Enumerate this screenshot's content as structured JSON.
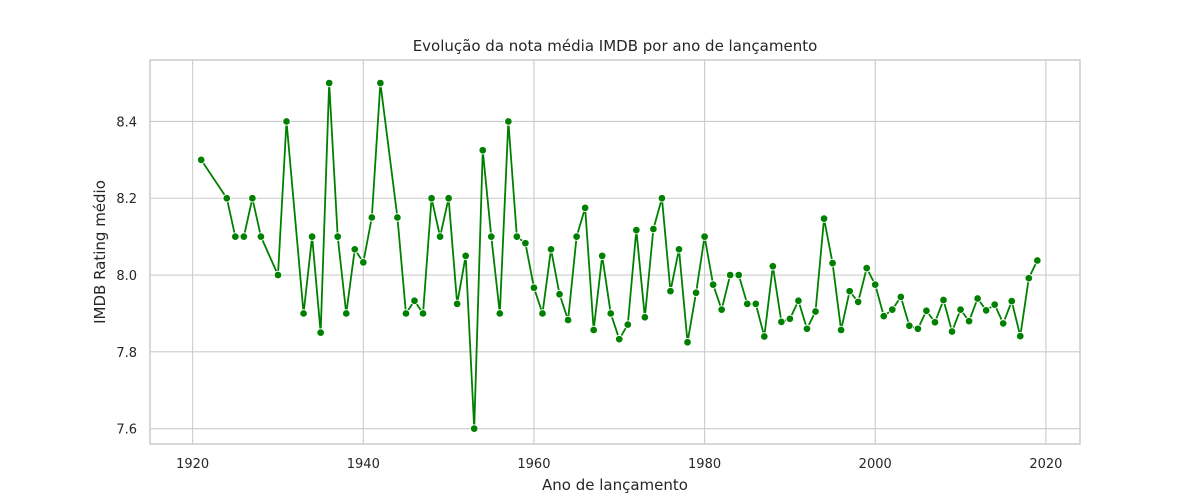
{
  "chart_data": {
    "type": "line",
    "title": "Evolução da nota média IMDB por ano de lançamento",
    "xlabel": "Ano de lançamento",
    "ylabel": "IMDB Rating médio",
    "xlim": [
      1915,
      2024
    ],
    "ylim": [
      7.56,
      8.56
    ],
    "x_ticks": [
      1920,
      1940,
      1960,
      1980,
      2000,
      2020
    ],
    "y_ticks": [
      7.6,
      7.8,
      8.0,
      8.2,
      8.4
    ],
    "y_tick_labels": [
      "7.6",
      "7.8",
      "8.0",
      "8.2",
      "8.4"
    ],
    "grid": true,
    "series": [
      {
        "color": "#008000",
        "marker": "circle",
        "x": [
          1921,
          1924,
          1925,
          1926,
          1927,
          1928,
          1930,
          1931,
          1933,
          1934,
          1935,
          1936,
          1937,
          1938,
          1939,
          1940,
          1941,
          1942,
          1944,
          1945,
          1946,
          1947,
          1948,
          1949,
          1950,
          1951,
          1952,
          1953,
          1954,
          1955,
          1956,
          1957,
          1958,
          1959,
          1960,
          1961,
          1962,
          1963,
          1964,
          1965,
          1966,
          1967,
          1968,
          1969,
          1970,
          1971,
          1972,
          1973,
          1974,
          1975,
          1976,
          1977,
          1978,
          1979,
          1980,
          1981,
          1982,
          1983,
          1984,
          1985,
          1986,
          1987,
          1988,
          1989,
          1990,
          1991,
          1992,
          1993,
          1994,
          1995,
          1996,
          1997,
          1998,
          1999,
          2000,
          2001,
          2002,
          2003,
          2004,
          2005,
          2006,
          2007,
          2008,
          2009,
          2010,
          2011,
          2012,
          2013,
          2014,
          2015,
          2016,
          2017,
          2018,
          2019
        ],
        "y": [
          8.3,
          8.2,
          8.1,
          8.1,
          8.2,
          8.1,
          8.0,
          8.4,
          7.9,
          8.1,
          7.85,
          8.5,
          8.1,
          7.9,
          8.067,
          8.033,
          8.15,
          8.5,
          8.15,
          7.9,
          7.933,
          7.9,
          8.2,
          8.1,
          8.2,
          7.925,
          8.05,
          7.6,
          8.325,
          8.1,
          7.9,
          8.4,
          8.1,
          8.083,
          7.967,
          7.9,
          8.067,
          7.95,
          7.883,
          8.1,
          8.175,
          7.857,
          8.05,
          7.9,
          7.833,
          7.871,
          8.117,
          7.89,
          8.12,
          8.2,
          7.958,
          8.067,
          7.825,
          7.954,
          8.1,
          7.975,
          7.91,
          8.0,
          8.0,
          7.925,
          7.925,
          7.84,
          8.023,
          7.878,
          7.886,
          7.933,
          7.86,
          7.905,
          8.147,
          8.031,
          7.857,
          7.958,
          7.93,
          8.018,
          7.975,
          7.893,
          7.91,
          7.943,
          7.868,
          7.86,
          7.907,
          7.877,
          7.935,
          7.853,
          7.91,
          7.88,
          7.939,
          7.908,
          7.923,
          7.874,
          7.932,
          7.841,
          7.992,
          8.038
        ]
      }
    ]
  }
}
